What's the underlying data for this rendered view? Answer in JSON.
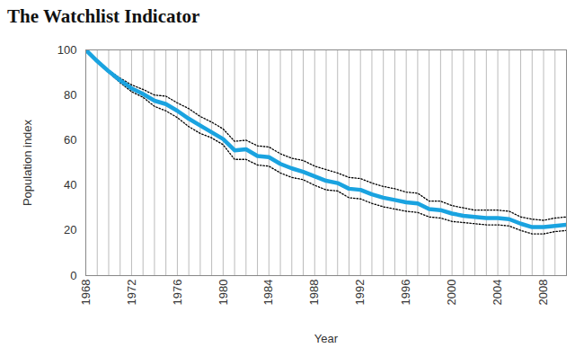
{
  "chart_data": {
    "type": "line",
    "title": "The Watchlist Indicator",
    "x_label": "Year",
    "y_label": "Population index",
    "x": [
      1968,
      1969,
      1970,
      1971,
      1972,
      1973,
      1974,
      1975,
      1976,
      1977,
      1978,
      1979,
      1980,
      1981,
      1982,
      1983,
      1984,
      1985,
      1986,
      1987,
      1988,
      1989,
      1990,
      1991,
      1992,
      1993,
      1994,
      1995,
      1996,
      1997,
      1998,
      1999,
      2000,
      2001,
      2002,
      2003,
      2004,
      2005,
      2006,
      2007,
      2008,
      2009,
      2010
    ],
    "series": [
      {
        "color": "#000000",
        "line_style": "dotted",
        "values": [
          100,
          95.5,
          91,
          87.5,
          84.5,
          82.5,
          80,
          79.5,
          76.5,
          74,
          70.5,
          68,
          65,
          59.5,
          60,
          57.5,
          57,
          54,
          52,
          51,
          48.5,
          47,
          45.5,
          43.5,
          43,
          41,
          39.5,
          38.5,
          37,
          36.5,
          33,
          33,
          31,
          30,
          29,
          29,
          29,
          28.5,
          26,
          25,
          24.5,
          25.5,
          26
        ]
      },
      {
        "color": "#000000",
        "line_style": "dotted",
        "values": [
          100,
          94.5,
          90,
          85.5,
          81.5,
          79,
          75,
          73,
          70,
          66,
          63,
          61,
          58,
          51.5,
          51.5,
          49,
          48.5,
          45.5,
          43.5,
          42.5,
          40,
          38,
          37.5,
          34.5,
          34,
          32,
          30.5,
          29.5,
          28.5,
          28,
          26,
          25.5,
          24,
          23.5,
          23,
          22.5,
          22.5,
          22,
          20,
          18.5,
          18.5,
          19.5,
          20
        ]
      },
      {
        "color": "#1aa3e0",
        "line_style": "solid",
        "values": [
          100,
          95,
          90.5,
          86.5,
          83,
          80.5,
          77.5,
          76,
          73,
          69.5,
          66.5,
          63.5,
          60.5,
          55.5,
          56,
          53,
          52.5,
          49.5,
          47.5,
          46,
          44,
          42,
          41,
          38.5,
          38,
          36,
          34.5,
          33.5,
          32.5,
          32,
          29.5,
          29,
          27.5,
          26.5,
          26,
          25.5,
          25.5,
          25,
          23,
          21.5,
          21.5,
          22,
          22.5
        ]
      }
    ],
    "xlim": [
      1968,
      2010
    ],
    "xticks": [
      1968,
      1972,
      1976,
      1980,
      1984,
      1988,
      1992,
      1996,
      2000,
      2004,
      2008
    ],
    "ylim": [
      0,
      100
    ],
    "yticks": [
      0,
      20,
      40,
      60,
      80,
      100
    ],
    "grid": true
  }
}
